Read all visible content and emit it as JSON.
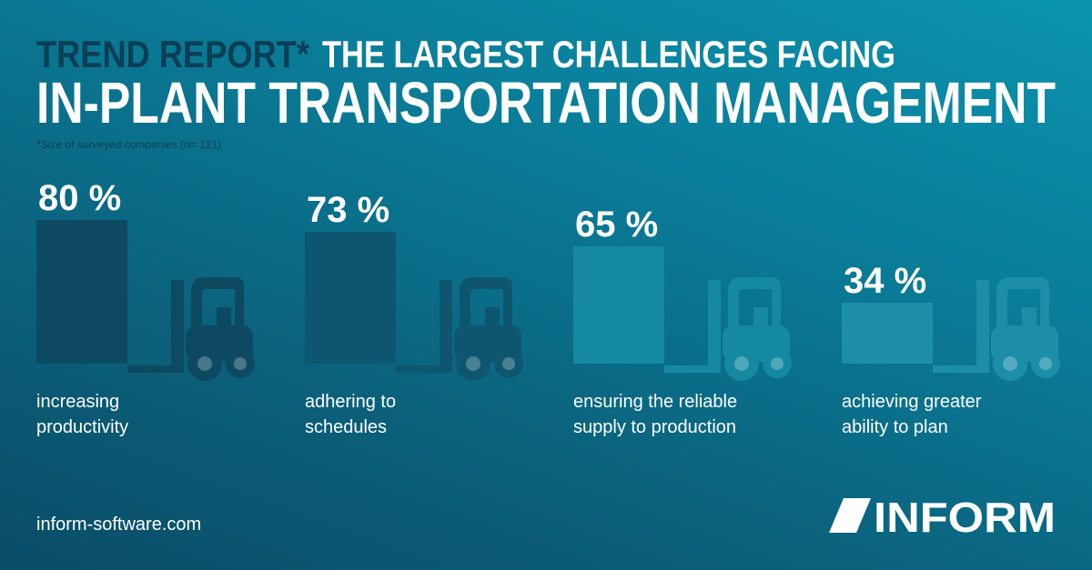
{
  "chart_data": {
    "type": "bar",
    "kicker": "TREND REPORT*",
    "title_lines": [
      "THE LARGEST CHALLENGES FACING",
      "IN-PLANT TRANSPORTATION MANAGEMENT"
    ],
    "footnote": "*Size of surveyed companies (n= 121)",
    "categories": [
      "increasing productivity",
      "adhering to schedules",
      "ensuring the reliable supply to production",
      "achieving greater ability to plan"
    ],
    "values": [
      80,
      73,
      65,
      34
    ],
    "value_labels": [
      "80 %",
      "73 %",
      "65 %",
      "34 %"
    ],
    "colors": [
      "#0d4a62",
      "#0e5670",
      "#1689a2",
      "#1d8ea8"
    ]
  },
  "footer": {
    "website": "inform-software.com",
    "logo": "INFORM"
  }
}
